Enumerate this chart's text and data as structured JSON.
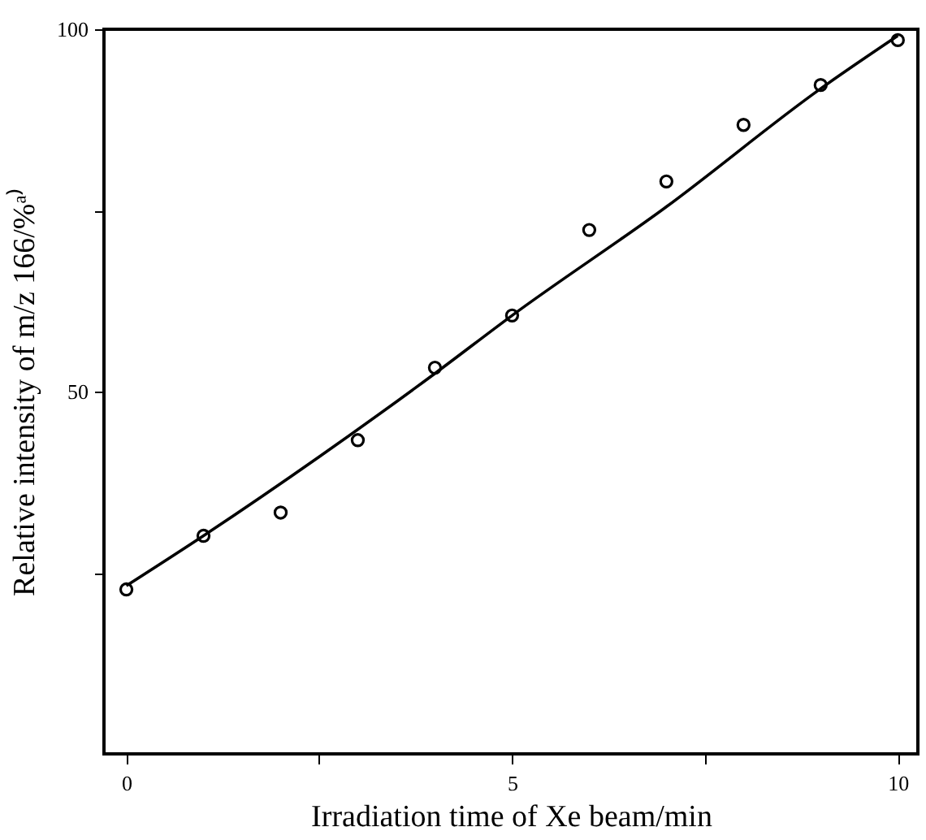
{
  "chart_data": {
    "type": "scatter",
    "xlabel": "Irradiation time of Xe beam/min",
    "ylabel": "Relative intensity of m/z 166/%ᵃ⁾",
    "xlim": [
      -0.29,
      10.26
    ],
    "xticks": [
      0,
      {
        "value": 2.5,
        "label": null
      },
      5,
      {
        "value": 7.5,
        "label": null
      },
      10
    ],
    "ylim": [
      0,
      100
    ],
    "yticks": [
      {
        "value": 25,
        "label": null
      },
      50,
      {
        "value": 75,
        "label": null
      },
      100
    ],
    "grid": false,
    "series": [
      {
        "marker": "circle",
        "color": "#000000",
        "x": [
          0,
          1,
          2,
          3,
          4,
          5,
          6,
          7,
          8,
          9,
          10
        ],
        "values": [
          22.7,
          30.1,
          33.3,
          43.3,
          53.3,
          60.5,
          72.3,
          79.0,
          86.8,
          92.3,
          98.5
        ]
      },
      {
        "type": "line",
        "marker": "none",
        "line_style": "solid",
        "color": "#000000",
        "x": [
          0,
          1,
          2.5,
          4,
          5,
          7,
          9,
          10
        ],
        "values": [
          23.2,
          30.1,
          41.0,
          52.5,
          60.5,
          75.5,
          91.8,
          99.1
        ]
      }
    ]
  }
}
